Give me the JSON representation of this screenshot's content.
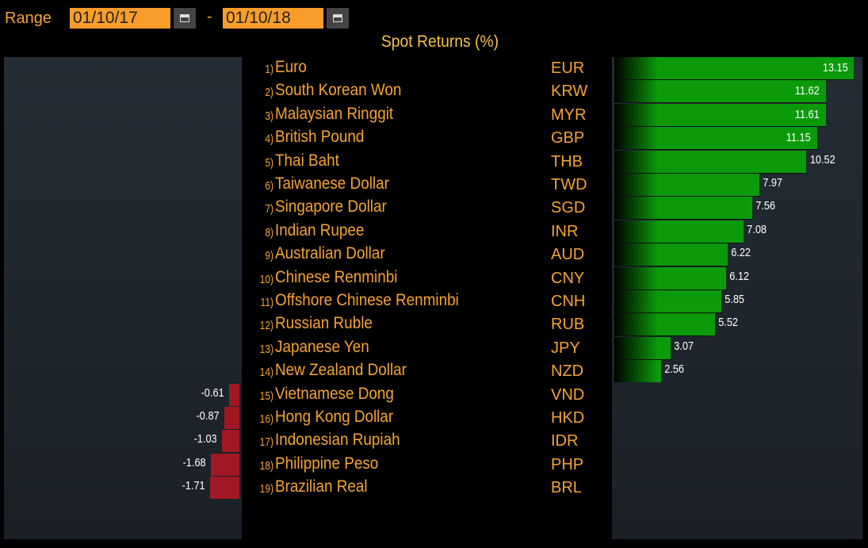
{
  "toolbar": {
    "range_label": "Range",
    "start_date": "01/10/17",
    "separator": "-",
    "end_date": "01/10/18"
  },
  "chart_data": {
    "type": "bar",
    "title": "Spot Returns (%)",
    "categories": [
      "Euro",
      "South Korean Won",
      "Malaysian Ringgit",
      "British Pound",
      "Thai Baht",
      "Taiwanese Dollar",
      "Singapore Dollar",
      "Indian Rupee",
      "Australian Dollar",
      "Chinese Renminbi",
      "Offshore Chinese Renminbi",
      "Russian Ruble",
      "Japanese Yen",
      "New Zealand Dollar",
      "Vietnamese Dong",
      "Hong Kong Dollar",
      "Indonesian Rupiah",
      "Philippine Peso",
      "Brazilian Real"
    ],
    "codes": [
      "EUR",
      "KRW",
      "MYR",
      "GBP",
      "THB",
      "TWD",
      "SGD",
      "INR",
      "AUD",
      "CNY",
      "CNH",
      "RUB",
      "JPY",
      "NZD",
      "VND",
      "HKD",
      "IDR",
      "PHP",
      "BRL"
    ],
    "numbers": [
      "1)",
      "2)",
      "3)",
      "4)",
      "5)",
      "6)",
      "7)",
      "8)",
      "9)",
      "10)",
      "11)",
      "12)",
      "13)",
      "14)",
      "15)",
      "16)",
      "17)",
      "18)",
      "19)"
    ],
    "values": [
      13.15,
      11.62,
      11.61,
      11.15,
      10.52,
      7.97,
      7.56,
      7.08,
      6.22,
      6.12,
      5.85,
      5.52,
      3.07,
      2.56,
      -0.61,
      -0.87,
      -1.03,
      -1.68,
      -1.71
    ],
    "labels": [
      "13.15",
      "11.62",
      "11.61",
      "11.15",
      "10.52",
      "7.97",
      "7.56",
      "7.08",
      "6.22",
      "6.12",
      "5.85",
      "5.52",
      "3.07",
      "2.56",
      "-0.61",
      "-0.87",
      "-1.03",
      "-1.68",
      "-1.71"
    ],
    "colors": {
      "positive": "#0a9a0a",
      "negative": "#a01824"
    }
  }
}
